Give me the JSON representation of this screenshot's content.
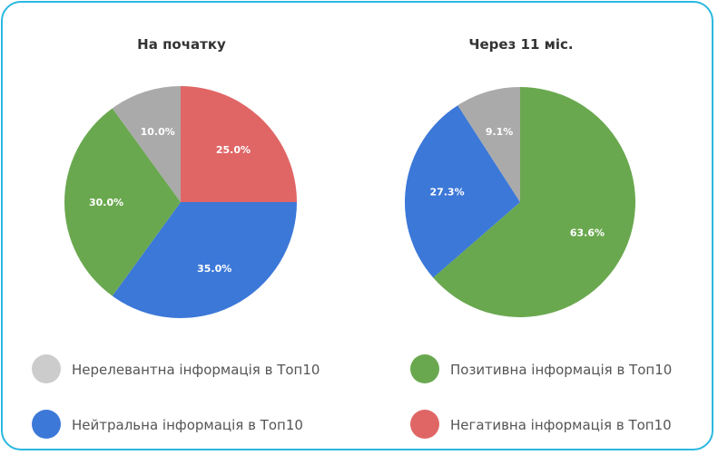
{
  "chart_data": [
    {
      "type": "pie",
      "title": "На початку",
      "slices": [
        {
          "label": "Негативна інформація в Топ10",
          "value": 25.0,
          "display": "25.0%",
          "color": "#e06666"
        },
        {
          "label": "Нейтральна інформація в Топ10",
          "value": 35.0,
          "display": "35.0%",
          "color": "#3c78d8"
        },
        {
          "label": "Позитивна інформація в Топ10",
          "value": 30.0,
          "display": "30.0%",
          "color": "#6aa84f"
        },
        {
          "label": "Нерелевантна інформація в Топ10",
          "value": 10.0,
          "display": "10.0%",
          "color": "#aaaaaa"
        }
      ]
    },
    {
      "type": "pie",
      "title": "Через 11 міс.",
      "slices": [
        {
          "label": "Позитивна інформація в Топ10",
          "value": 63.6,
          "display": "63.6%",
          "color": "#6aa84f"
        },
        {
          "label": "Нейтральна інформація в Топ10",
          "value": 27.3,
          "display": "27.3%",
          "color": "#3c78d8"
        },
        {
          "label": "Нерелевантна інформація в Топ10",
          "value": 9.1,
          "display": "9.1%",
          "color": "#aaaaaa"
        }
      ]
    }
  ],
  "legend": [
    {
      "label": "Нерелевантна інформація в Топ10",
      "color": "#cccccc"
    },
    {
      "label": "Позитивна інформація в Топ10",
      "color": "#6aa84f"
    },
    {
      "label": "Нейтральна інформація в Топ10",
      "color": "#3c78d8"
    },
    {
      "label": "Негативна інформація в Топ10",
      "color": "#e06666"
    }
  ]
}
